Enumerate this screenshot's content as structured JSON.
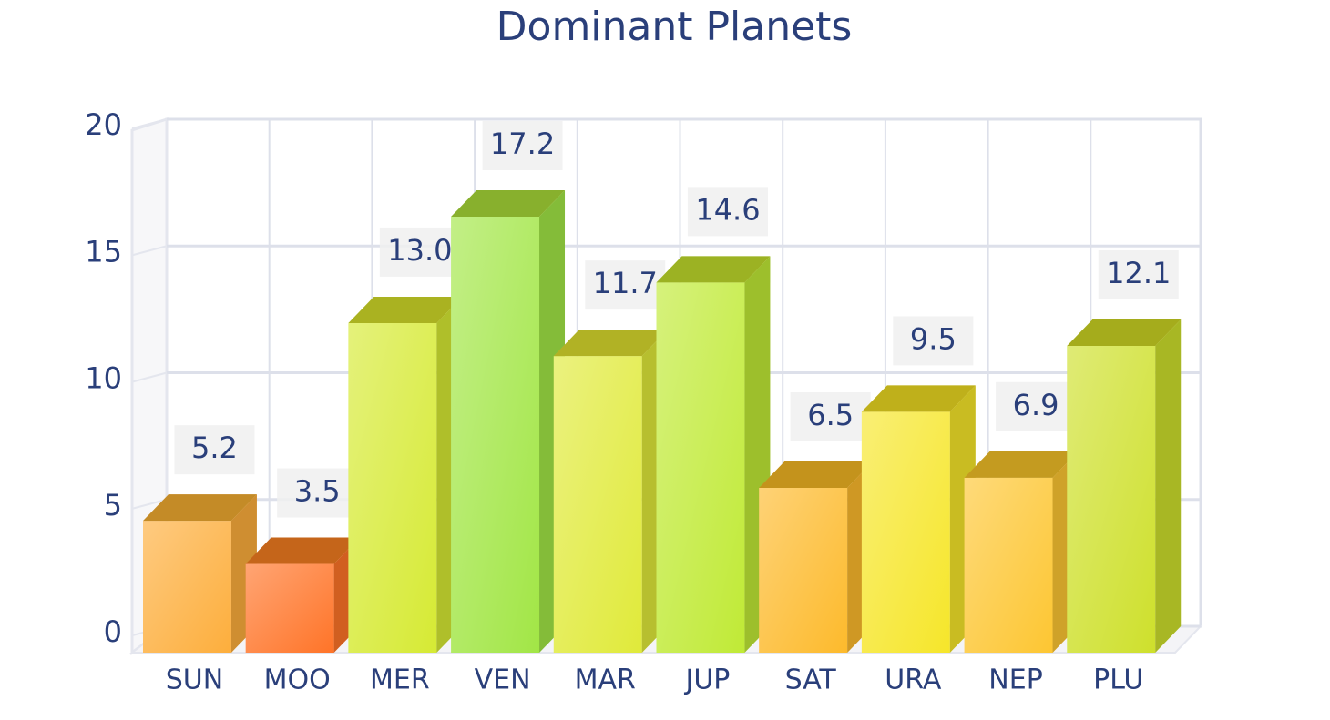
{
  "chart_data": {
    "type": "bar3d",
    "title": "Dominant Planets",
    "y_label": "%",
    "categories": [
      "SUN",
      "MOO",
      "MER",
      "VEN",
      "MAR",
      "JUP",
      "SAT",
      "URA",
      "NEP",
      "PLU"
    ],
    "values": [
      5.2,
      3.5,
      13.0,
      17.2,
      11.7,
      14.6,
      6.5,
      9.5,
      6.9,
      12.1
    ],
    "value_labels": [
      "5.2",
      "3.5",
      "13.0",
      "17.2",
      "11.7",
      "14.6",
      "6.5",
      "9.5",
      "6.9",
      "12.1"
    ],
    "colors": [
      "#fdae3c",
      "#ff7428",
      "#d6ea34",
      "#a2e646",
      "#e0ea3a",
      "#c0ea36",
      "#fdba2c",
      "#f6e62a",
      "#fdc632",
      "#cee02c"
    ],
    "ylim": [
      0,
      20
    ],
    "yticks": [
      0,
      5,
      10,
      15,
      20
    ],
    "grid": true
  }
}
